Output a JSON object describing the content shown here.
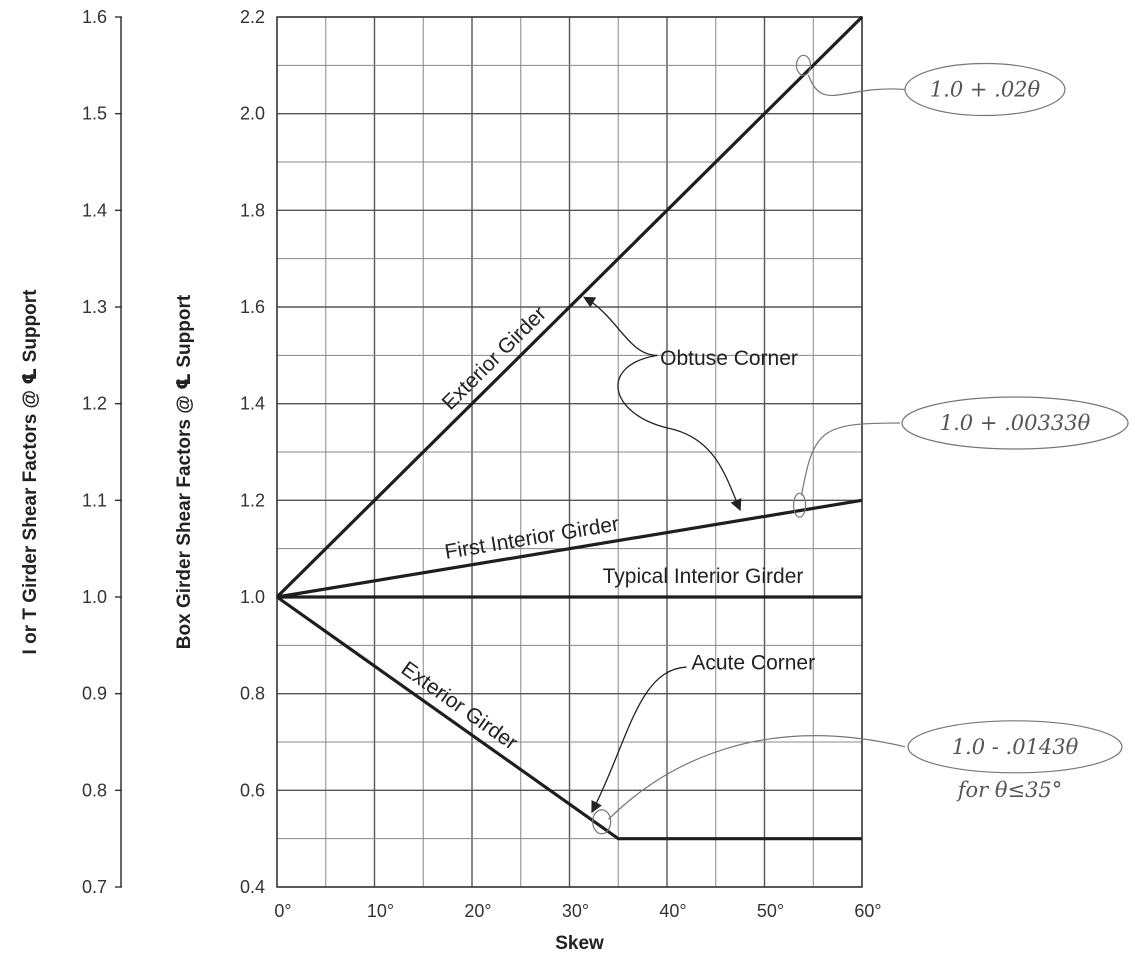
{
  "chart_data": {
    "type": "line",
    "xlabel": "Skew",
    "ylabel_left": "I or T Girder Shear Factors @ ℄ Support",
    "ylabel_right": "Box Girder Shear Factors @ ℄ Support",
    "x_ticks": [
      "0°",
      "10°",
      "20°",
      "30°",
      "40°",
      "50°",
      "60°"
    ],
    "xlim": [
      0,
      60
    ],
    "ylim": [
      0.4,
      2.2
    ],
    "ylim_left": [
      0.7,
      1.6
    ],
    "y_ticks": [
      "0.4",
      "0.6",
      "0.8",
      "1.0",
      "1.2",
      "1.4",
      "1.6",
      "1.8",
      "2.0",
      "2.2"
    ],
    "y_ticks_left": [
      "0.7",
      "0.8",
      "0.9",
      "1.0",
      "1.1",
      "1.2",
      "1.3",
      "1.4",
      "1.5",
      "1.6"
    ],
    "grid": true,
    "series": [
      {
        "name": "Exterior Girder",
        "x": [
          0,
          60
        ],
        "y": [
          1.0,
          2.2
        ]
      },
      {
        "name": "First Interior Girder",
        "x": [
          0,
          60
        ],
        "y": [
          1.0,
          1.2
        ]
      },
      {
        "name": "Typical Interior Girder",
        "x": [
          0,
          60
        ],
        "y": [
          1.0,
          1.0
        ]
      },
      {
        "name": "Exterior Girder",
        "x": [
          0,
          35,
          60
        ],
        "y": [
          1.0,
          0.5,
          0.5
        ]
      }
    ],
    "annotations": {
      "obtuse": "Obtuse Corner",
      "acute": "Acute Corner",
      "formula_exterior_obtuse": "1.0 + .02θ",
      "formula_first_interior": "1.0 + .00333θ",
      "formula_exterior_acute": "1.0 - .0143θ",
      "formula_exterior_acute_note": "for θ≤35°"
    }
  }
}
